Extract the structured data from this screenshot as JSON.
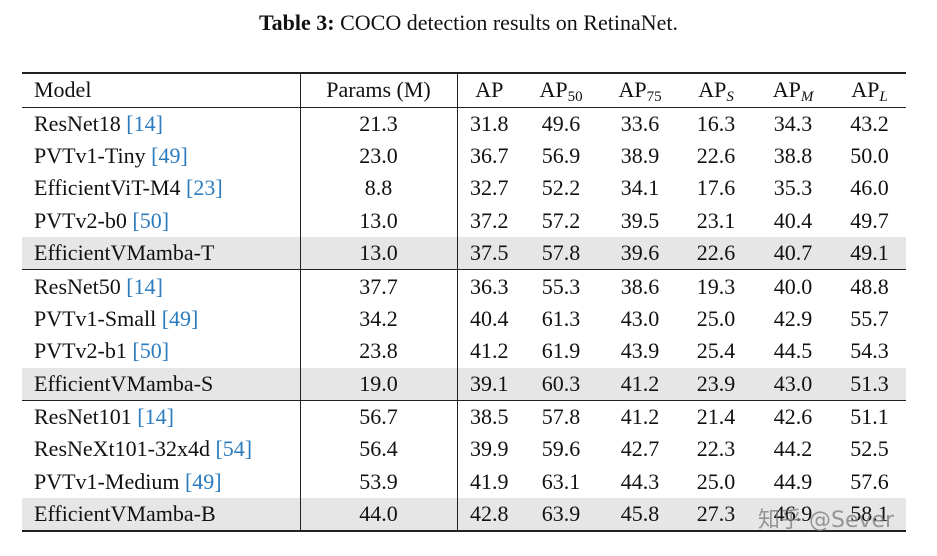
{
  "caption": {
    "label": "Table 3:",
    "text": "COCO detection results on RetinaNet."
  },
  "table": {
    "columns": [
      {
        "text": "Model"
      },
      {
        "text": "Params (M)"
      },
      {
        "text": "AP"
      },
      {
        "text": "AP",
        "sub": "50"
      },
      {
        "text": "AP",
        "sub": "75"
      },
      {
        "text": "AP",
        "sub": "S"
      },
      {
        "text": "AP",
        "sub": "M"
      },
      {
        "text": "AP",
        "sub": "L"
      }
    ],
    "groups": [
      [
        {
          "model": "ResNet18",
          "ref": "[14]",
          "cells": [
            "21.3",
            "31.8",
            "49.6",
            "33.6",
            "16.3",
            "34.3",
            "43.2"
          ]
        },
        {
          "model": "PVTv1-Tiny",
          "ref": "[49]",
          "cells": [
            "23.0",
            "36.7",
            "56.9",
            "38.9",
            "22.6",
            "38.8",
            "50.0"
          ]
        },
        {
          "model": "EfficientViT-M4",
          "ref": "[23]",
          "cells": [
            "8.8",
            "32.7",
            "52.2",
            "34.1",
            "17.6",
            "35.3",
            "46.0"
          ]
        },
        {
          "model": "PVTv2-b0",
          "ref": "[50]",
          "cells": [
            "13.0",
            "37.2",
            "57.2",
            "39.5",
            "23.1",
            "40.4",
            "49.7"
          ]
        },
        {
          "model": "EfficientVMamba-T",
          "highlight": true,
          "cells": [
            "13.0",
            "37.5",
            "57.8",
            "39.6",
            "22.6",
            "40.7",
            "49.1"
          ]
        }
      ],
      [
        {
          "model": "ResNet50",
          "ref": "[14]",
          "cells": [
            "37.7",
            "36.3",
            "55.3",
            "38.6",
            "19.3",
            "40.0",
            "48.8"
          ]
        },
        {
          "model": "PVTv1-Small",
          "ref": "[49]",
          "cells": [
            "34.2",
            "40.4",
            "61.3",
            "43.0",
            "25.0",
            "42.9",
            "55.7"
          ]
        },
        {
          "model": "PVTv2-b1",
          "ref": "[50]",
          "cells": [
            "23.8",
            "41.2",
            "61.9",
            "43.9",
            "25.4",
            "44.5",
            "54.3"
          ]
        },
        {
          "model": "EfficientVMamba-S",
          "highlight": true,
          "cells": [
            "19.0",
            "39.1",
            "60.3",
            "41.2",
            "23.9",
            "43.0",
            "51.3"
          ]
        }
      ],
      [
        {
          "model": "ResNet101",
          "ref": "[14]",
          "cells": [
            "56.7",
            "38.5",
            "57.8",
            "41.2",
            "21.4",
            "42.6",
            "51.1"
          ]
        },
        {
          "model": "ResNeXt101-32x4d",
          "ref": "[54]",
          "cells": [
            "56.4",
            "39.9",
            "59.6",
            "42.7",
            "22.3",
            "44.2",
            "52.5"
          ]
        },
        {
          "model": "PVTv1-Medium",
          "ref": "[49]",
          "cells": [
            "53.9",
            "41.9",
            "63.1",
            "44.3",
            "25.0",
            "44.9",
            "57.6"
          ]
        },
        {
          "model": "EfficientVMamba-B",
          "highlight": true,
          "cells": [
            "44.0",
            "42.8",
            "63.9",
            "45.8",
            "27.3",
            "46.9",
            "58.1"
          ]
        }
      ]
    ]
  },
  "watermark": "知乎 @Sever"
}
